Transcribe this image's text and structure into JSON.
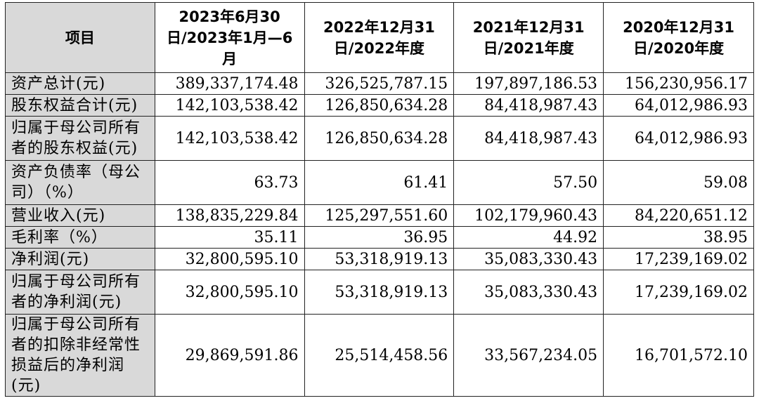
{
  "table": {
    "header": {
      "item": "项目",
      "columns": [
        "2023年6月30日/2023年1月—6月",
        "2022年12月31日/2022年度",
        "2021年12月31日/2021年度",
        "2020年12月31日/2020年度"
      ]
    },
    "rows": [
      {
        "label": "资产总计(元)",
        "values": [
          "389,337,174.48",
          "326,525,787.15",
          "197,897,186.53",
          "156,230,956.17"
        ]
      },
      {
        "label": "股东权益合计(元)",
        "values": [
          "142,103,538.42",
          "126,850,634.28",
          "84,418,987.43",
          "64,012,986.93"
        ]
      },
      {
        "label": "归属于母公司所有者的股东权益(元)",
        "values": [
          "142,103,538.42",
          "126,850,634.28",
          "84,418,987.43",
          "64,012,986.93"
        ]
      },
      {
        "label": "资产负债率（母公司）（%）",
        "values": [
          "63.73",
          "61.41",
          "57.50",
          "59.08"
        ]
      },
      {
        "label": "营业收入(元)",
        "values": [
          "138,835,229.84",
          "125,297,551.60",
          "102,179,960.43",
          "84,220,651.12"
        ]
      },
      {
        "label": "毛利率（%）",
        "values": [
          "35.11",
          "36.95",
          "44.92",
          "38.95"
        ]
      },
      {
        "label": "净利润(元)",
        "values": [
          "32,800,595.10",
          "53,318,919.13",
          "35,083,330.43",
          "17,239,169.02"
        ]
      },
      {
        "label": "归属于母公司所有者的净利润(元)",
        "values": [
          "32,800,595.10",
          "53,318,919.13",
          "35,083,330.43",
          "17,239,169.02"
        ]
      },
      {
        "label": "归属于母公司所有者的扣除非经常性损益后的净利润(元)",
        "values": [
          "29,869,591.86",
          "25,514,458.56",
          "33,567,234.05",
          "16,701,572.10"
        ]
      }
    ]
  }
}
